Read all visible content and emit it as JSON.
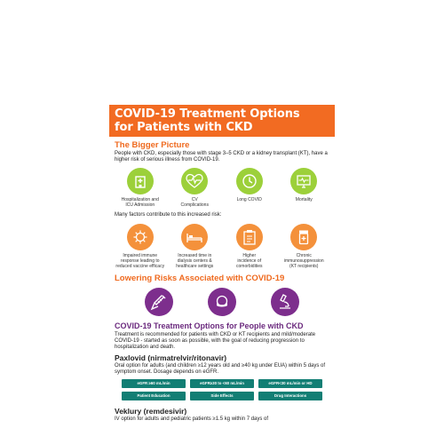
{
  "header": {
    "title_line1": "COVID-19 Treatment Options",
    "title_line2": "for Patients with CKD"
  },
  "bigger_picture": {
    "heading": "The Bigger Picture",
    "text": "People with CKD, especially those with stage 3–5 CKD or a kidney transplant (KT), have a higher risk of serious illness from COVID-19.",
    "risks": [
      {
        "icon": "hospital-icon",
        "label_line1": "Hospitalization and",
        "label_line2": "ICU Admission"
      },
      {
        "icon": "heart-pulse-icon",
        "label_line1": "CV",
        "label_line2": "Complications"
      },
      {
        "icon": "clock-icon",
        "label_line1": "Long COVID",
        "label_line2": ""
      },
      {
        "icon": "monitor-icon",
        "label_line1": "Mortality",
        "label_line2": ""
      }
    ]
  },
  "factors": {
    "intro": "Many factors contribute to this increased risk:",
    "items": [
      {
        "icon": "virus-icon",
        "label_line1": "Impaired immune",
        "label_line2": "response leading to",
        "label_line3": "reduced vaccine efficacy"
      },
      {
        "icon": "hospital-bed-icon",
        "label_line1": "Increased time in",
        "label_line2": "dialysis centers &",
        "label_line3": "healthcare settings"
      },
      {
        "icon": "clipboard-icon",
        "label_line1": "Higher",
        "label_line2": "incidence of",
        "label_line3": "comorbidities"
      },
      {
        "icon": "pill-bottle-icon",
        "label_line1": "Chronic",
        "label_line2": "immunosuppression",
        "label_line3": "(KT recipients)"
      }
    ]
  },
  "lowering": {
    "heading": "Lowering Risks Associated with COVID-19",
    "icons": [
      "syringe-icon",
      "mask-icon",
      "microscope-icon"
    ]
  },
  "treatment": {
    "heading": "COVID-19 Treatment Options for People with CKD",
    "text": "Treatment is recommended for patients with CKD or KT recipients and mild/moderate COVID-19 - started as soon as possible, with the goal of reducing progression to hospitalization and death."
  },
  "paxlovid": {
    "title": "Paxlovid (nirmatrelvir/ritonavir)",
    "text": "Oral option for adults (and children ≥12 years old and ≥40 kg under EUA) within 5 days of symptom onset. Dosage depends on eGFR.",
    "buttons": [
      "eGFR ≥60 mL/min",
      "eGFR≥30 to <60 mL/min",
      "eGFR<30 mL/min or HD",
      "Patient Education",
      "Side Effects",
      "Drug Interactions"
    ]
  },
  "veklury": {
    "title": "Veklury (remdesivir)",
    "text": "IV option for adults and pediatric patients ≥1.5 kg within 7 days of"
  },
  "colors": {
    "orange": "#f26b22",
    "green": "#9cd03a",
    "purple": "#7d2e8d",
    "teal": "#127e74"
  }
}
